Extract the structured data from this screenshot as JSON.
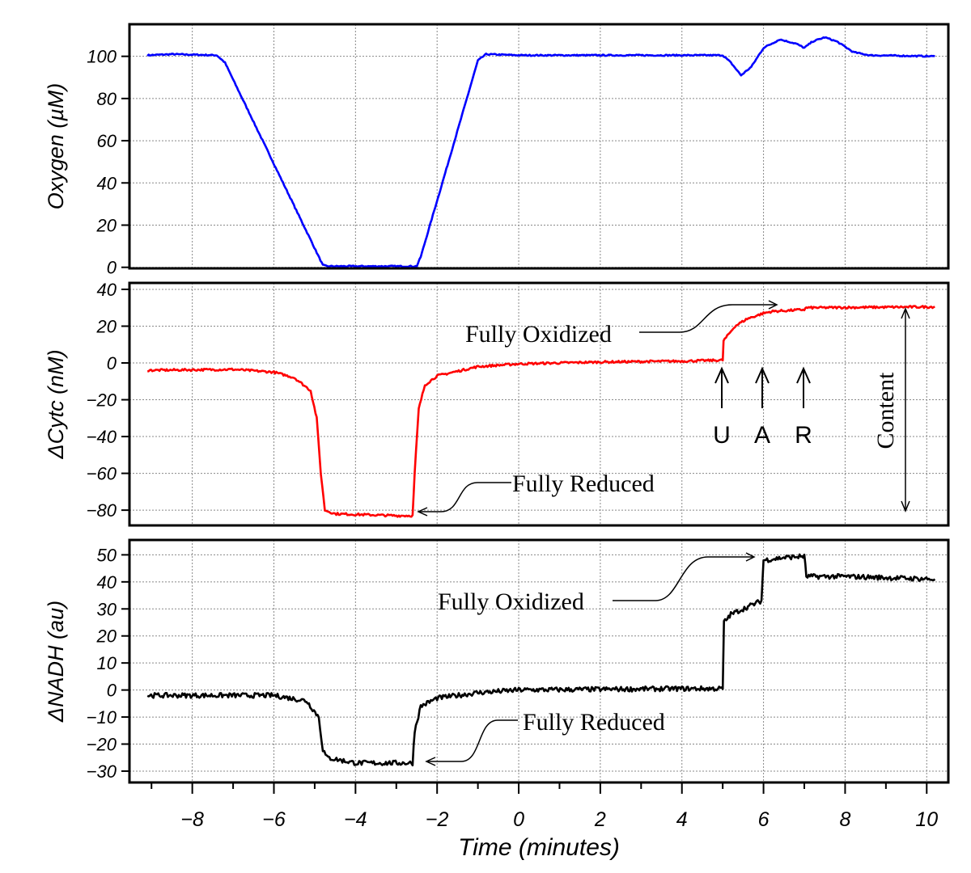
{
  "chart_data": [
    {
      "type": "line",
      "ylabel": "Oxygen (µM)",
      "ylim": [
        0,
        115
      ],
      "yticks": [
        0,
        20,
        40,
        60,
        80,
        100
      ],
      "color": "#0000ff",
      "x": [
        -9.1,
        -8.5,
        -7.4,
        -7.2,
        -4.8,
        -4.7,
        -2.5,
        -2.4,
        -1.0,
        -0.8,
        0,
        5.0,
        5.2,
        5.45,
        5.7,
        6.0,
        6.4,
        6.8,
        7.0,
        7.2,
        7.5,
        7.8,
        8.2,
        8.6,
        10.2
      ],
      "y": [
        100.5,
        101,
        100.5,
        97,
        1,
        0.5,
        0.5,
        5,
        98,
        101,
        100.5,
        100.5,
        97,
        91,
        95,
        104,
        108,
        106,
        104,
        107,
        109,
        107,
        102,
        100.5,
        100
      ]
    },
    {
      "type": "line",
      "ylabel": "ΔCytc (nM)",
      "ylim": [
        -88,
        44
      ],
      "yticks": [
        -80,
        -60,
        -40,
        -20,
        0,
        20,
        40
      ],
      "color": "#ff0000",
      "x": [
        -9.1,
        -7,
        -6,
        -5.5,
        -5.1,
        -4.95,
        -4.85,
        -4.75,
        -4.5,
        -3,
        -2.6,
        -2.55,
        -2.45,
        -2.3,
        -2,
        -1,
        0,
        2,
        4,
        5,
        5.02,
        5.3,
        5.6,
        6,
        6.2,
        7,
        7.05,
        10.2
      ],
      "y": [
        -4,
        -3.5,
        -5,
        -8,
        -15,
        -30,
        -60,
        -80,
        -82,
        -83,
        -83,
        -60,
        -25,
        -12,
        -7,
        -2,
        -0.5,
        0.5,
        1,
        1.5,
        12,
        20,
        24,
        27,
        28,
        29,
        30,
        30.5
      ],
      "annotations": {
        "fully_oxidized": "Fully Oxidized",
        "fully_reduced": "Fully Reduced",
        "markers": [
          "U",
          "A",
          "R"
        ],
        "content": "Content"
      }
    },
    {
      "type": "line",
      "ylabel": "ΔNADH (au)",
      "ylim": [
        -35,
        55
      ],
      "yticks": [
        -30,
        -20,
        -10,
        0,
        10,
        20,
        30,
        40,
        50
      ],
      "color": "#000000",
      "x": [
        -9.1,
        -7,
        -6,
        -5.2,
        -4.9,
        -4.8,
        -4.7,
        -4,
        -2.6,
        -2.55,
        -2.4,
        -2,
        -1,
        0,
        4,
        5,
        5.03,
        5.2,
        5.5,
        5.95,
        6.0,
        6.5,
        7.0,
        7.05,
        8,
        10.2
      ],
      "y": [
        -2,
        -2,
        -2,
        -4,
        -10,
        -22,
        -25,
        -27,
        -27,
        -15,
        -6,
        -3,
        -1,
        0,
        0.5,
        0.5,
        25,
        28,
        30,
        33,
        48,
        49,
        49.5,
        42,
        42,
        41
      ],
      "annotations": {
        "fully_oxidized": "Fully Oxidized",
        "fully_reduced": "Fully Reduced"
      }
    }
  ],
  "xaxis": {
    "label": "Time (minutes)",
    "ticks": [
      -8,
      -6,
      -4,
      -2,
      0,
      2,
      4,
      6,
      8,
      10
    ],
    "xlim": [
      -9.54,
      10.53
    ]
  }
}
